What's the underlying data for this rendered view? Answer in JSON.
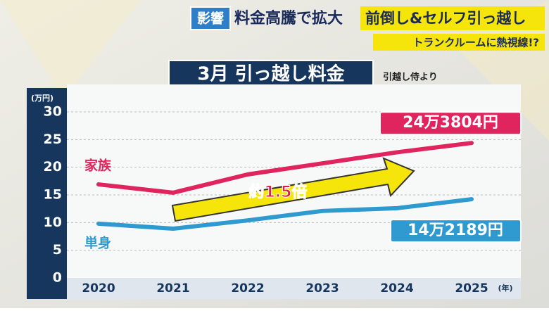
{
  "banner": {
    "tag": "影響",
    "headline": "料金高騰で拡大",
    "highlight": "前倒し&セルフ引っ越し",
    "sub": "トランクルームに熱視線!?"
  },
  "chart_data": {
    "type": "line",
    "title": "3月 引っ越し料金",
    "source": "引越し侍より",
    "y_unit": "(万円)",
    "x_unit": "(年)",
    "categories": [
      "2020",
      "2021",
      "2022",
      "2023",
      "2024",
      "2025"
    ],
    "series": [
      {
        "name": "家族",
        "color": "#e0245e",
        "values": [
          16.9,
          15.4,
          18.7,
          20.7,
          22.7,
          24.3804
        ],
        "value_labels": [
          null,
          null,
          null,
          null,
          null,
          "24万3804円"
        ]
      },
      {
        "name": "単身",
        "color": "#2e9ad0",
        "values": [
          9.8,
          8.9,
          10.4,
          12.1,
          12.6,
          14.2189
        ],
        "value_labels": [
          null,
          null,
          null,
          null,
          null,
          "14万2189円"
        ]
      }
    ],
    "annotation": "約1.5倍",
    "ylim": [
      0,
      30
    ],
    "yticks": [
      0,
      5,
      10,
      15,
      20,
      25,
      30
    ],
    "grid": true
  }
}
